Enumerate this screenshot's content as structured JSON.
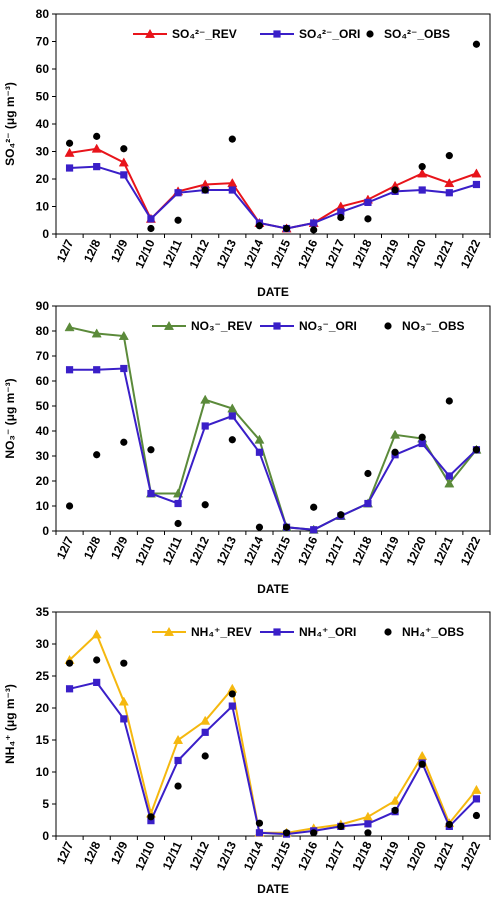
{
  "chart_data": [
    {
      "type": "line",
      "categories": [
        "12/7",
        "12/8",
        "12/9",
        "12/10",
        "12/11",
        "12/12",
        "12/13",
        "12/14",
        "12/15",
        "12/16",
        "12/17",
        "12/18",
        "12/19",
        "12/20",
        "12/21",
        "12/22"
      ],
      "xlabel": "DATE",
      "ylabel": "SO₄²⁻ (μg m⁻³)",
      "ylim": [
        0,
        80
      ],
      "yticks": [
        0,
        10,
        20,
        30,
        40,
        50,
        60,
        70,
        80
      ],
      "grid": false,
      "legend_position": "top",
      "series": [
        {
          "name": "SO₄²⁻_REV",
          "style": "line-triangle",
          "color": "#e8141b",
          "values": [
            29.5,
            31,
            26,
            5.5,
            15.5,
            18,
            18.5,
            4,
            2,
            4,
            10,
            12.5,
            17.5,
            22,
            18.5,
            22
          ]
        },
        {
          "name": "SO₄²⁻_ORI",
          "style": "line-square",
          "color": "#3a1fc8",
          "values": [
            24,
            24.5,
            21.5,
            5.5,
            15,
            16,
            16,
            4,
            2,
            4,
            8,
            11.5,
            15.5,
            16,
            15,
            18
          ]
        },
        {
          "name": "SO₄²⁻_OBS",
          "style": "dot",
          "color": "#000000",
          "values": [
            33,
            35.5,
            31,
            2,
            5,
            16,
            34.5,
            3,
            2,
            1.5,
            6,
            5.5,
            16,
            24.5,
            28.5,
            69
          ]
        }
      ]
    },
    {
      "type": "line",
      "categories": [
        "12/7",
        "12/8",
        "12/9",
        "12/10",
        "12/11",
        "12/12",
        "12/13",
        "12/14",
        "12/15",
        "12/16",
        "12/17",
        "12/18",
        "12/19",
        "12/20",
        "12/21",
        "12/22"
      ],
      "xlabel": "DATE",
      "ylabel": "NO₃⁻ (μg m⁻³)",
      "ylim": [
        0,
        90
      ],
      "yticks": [
        0,
        10,
        20,
        30,
        40,
        50,
        60,
        70,
        80,
        90
      ],
      "grid": false,
      "legend_position": "top",
      "series": [
        {
          "name": "NO₃⁻_REV",
          "style": "line-triangle",
          "color": "#5b8a3a",
          "values": [
            81.5,
            79,
            78,
            15,
            15,
            52.5,
            49,
            36.5,
            1.5,
            0.5,
            6,
            11,
            38.5,
            37,
            19,
            32.5
          ]
        },
        {
          "name": "NO₃⁻_ORI",
          "style": "line-square",
          "color": "#3a1fc8",
          "values": [
            64.5,
            64.5,
            65,
            15,
            11,
            42,
            46,
            31.5,
            1.5,
            0.5,
            6,
            11,
            30.5,
            35,
            22,
            32.5
          ]
        },
        {
          "name": "NO₃⁻_OBS",
          "style": "dot",
          "color": "#000000",
          "values": [
            10,
            30.5,
            35.5,
            32.5,
            3,
            10.5,
            36.5,
            1.5,
            1.5,
            9.5,
            6.5,
            23,
            31.5,
            37.5,
            52,
            32.5
          ]
        }
      ]
    },
    {
      "type": "line",
      "categories": [
        "12/7",
        "12/8",
        "12/9",
        "12/10",
        "12/11",
        "12/12",
        "12/13",
        "12/14",
        "12/15",
        "12/16",
        "12/17",
        "12/18",
        "12/19",
        "12/20",
        "12/21",
        "12/22"
      ],
      "xlabel": "DATE",
      "ylabel": "NH₄⁺ (μg m⁻³)",
      "ylim": [
        0,
        35
      ],
      "yticks": [
        0,
        5,
        10,
        15,
        20,
        25,
        30,
        35
      ],
      "grid": false,
      "legend_position": "top",
      "series": [
        {
          "name": "NH₄⁺_REV",
          "style": "line-triangle",
          "color": "#f5b80f",
          "values": [
            27.5,
            31.5,
            21,
            3.5,
            15,
            18,
            23,
            0.5,
            0.5,
            1.2,
            1.8,
            3,
            5.5,
            12.5,
            2,
            7.2
          ]
        },
        {
          "name": "NH₄⁺_ORI",
          "style": "line-square",
          "color": "#3a1fc8",
          "values": [
            23,
            24,
            18.3,
            2.4,
            11.8,
            16.2,
            20.3,
            0.5,
            0.3,
            0.8,
            1.5,
            1.9,
            3.8,
            11.4,
            1.5,
            5.8
          ]
        },
        {
          "name": "NH₄⁺_OBS",
          "style": "dot",
          "color": "#000000",
          "values": [
            27,
            27.5,
            27,
            3,
            7.8,
            12.5,
            22.2,
            2,
            0.5,
            0.5,
            1.5,
            0.5,
            4,
            11.2,
            1.8,
            3.2
          ]
        }
      ]
    }
  ]
}
